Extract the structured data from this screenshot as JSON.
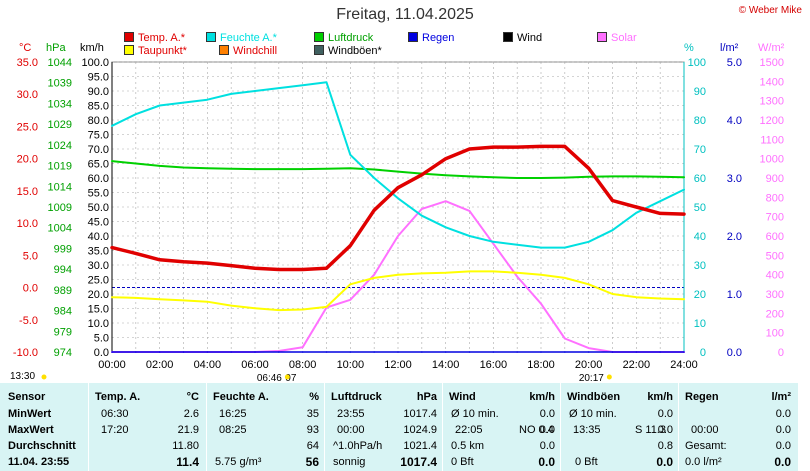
{
  "title": "Freitag, 11.04.2025",
  "credit": "© Weber Mike",
  "legend": [
    {
      "label": "Temp. A.*",
      "color": "#e00000"
    },
    {
      "label": "Feuchte A.*",
      "color": "#00e0e0"
    },
    {
      "label": "Luftdruck",
      "color": "#00d000"
    },
    {
      "label": "Regen",
      "color": "#0000e0"
    },
    {
      "label": "Wind",
      "color": "#000000"
    },
    {
      "label": "Solar",
      "color": "#ff70ff"
    },
    {
      "label": "Taupunkt*",
      "color": "#ffff00"
    },
    {
      "label": "Windchill",
      "color": "#ff8000"
    },
    {
      "label": "Windböen*",
      "color": "#406060"
    }
  ],
  "axis_units": {
    "temp": "°C",
    "pressure": "hPa",
    "wind": "km/h",
    "humidity": "%",
    "rain": "l/m²",
    "solar": "W/m²"
  },
  "chart_data": {
    "type": "line",
    "x": [
      0,
      1,
      2,
      3,
      4,
      5,
      6,
      7,
      8,
      9,
      10,
      11,
      12,
      13,
      14,
      15,
      16,
      17,
      18,
      19,
      20,
      21,
      22,
      23,
      24
    ],
    "x_tick_labels": [
      "00:00",
      "02:00",
      "04:00",
      "06:00",
      "08:00",
      "10:00",
      "12:00",
      "14:00",
      "16:00",
      "18:00",
      "20:00",
      "22:00",
      "24:00"
    ],
    "axes": {
      "temp_c": {
        "range": [
          -10,
          35
        ],
        "ticks": [
          "35.0",
          "30.0",
          "25.0",
          "20.0",
          "15.0",
          "10.0",
          "5.0",
          "0.0",
          "-5.0",
          "-10.0"
        ]
      },
      "pressure_hpa": {
        "range": [
          974,
          1046
        ],
        "ticks": [
          "1044",
          "1039",
          "1034",
          "1029",
          "1024",
          "1019",
          "1014",
          "1009",
          "1004",
          "999",
          "994",
          "989",
          "984",
          "979",
          "974"
        ]
      },
      "wind_kmh": {
        "range": [
          0,
          100
        ],
        "ticks": [
          "100.0",
          "95.0",
          "90.0",
          "85.0",
          "80.0",
          "75.0",
          "70.0",
          "65.0",
          "60.0",
          "55.0",
          "50.0",
          "45.0",
          "40.0",
          "35.0",
          "30.0",
          "25.0",
          "20.0",
          "15.0",
          "10.0",
          "5.0",
          "0.0"
        ]
      },
      "humidity_pct": {
        "range": [
          0,
          100
        ],
        "ticks": [
          "100",
          "90",
          "80",
          "70",
          "60",
          "50",
          "40",
          "30",
          "20",
          "10",
          "0"
        ]
      },
      "rain_lm2": {
        "range": [
          0,
          5
        ],
        "ticks": [
          "5.0",
          "4.0",
          "3.0",
          "2.0",
          "1.0",
          "0.0"
        ]
      },
      "solar_wm2": {
        "range": [
          0,
          1500
        ],
        "ticks": [
          "1500",
          "1400",
          "1300",
          "1200",
          "1100",
          "1000",
          "900",
          "800",
          "700",
          "600",
          "500",
          "400",
          "300",
          "200",
          "100",
          "0"
        ]
      }
    },
    "series": [
      {
        "name": "Temp. A.*",
        "axis": "temp_c",
        "color": "#e00000",
        "values": [
          6.2,
          5.3,
          4.3,
          4.0,
          3.8,
          3.4,
          3.0,
          2.8,
          2.8,
          3.0,
          6.5,
          12.0,
          15.5,
          17.5,
          20.0,
          21.5,
          21.8,
          21.8,
          21.9,
          21.9,
          18.5,
          13.5,
          12.5,
          11.5,
          11.4
        ]
      },
      {
        "name": "Feuchte A.*",
        "axis": "humidity_pct",
        "color": "#00e0e0",
        "values": [
          78,
          82,
          85,
          86,
          87,
          89,
          90,
          91,
          92,
          93,
          68,
          60,
          53,
          47,
          43,
          40,
          38,
          37,
          36,
          36,
          38,
          42,
          48,
          52,
          56
        ]
      },
      {
        "name": "Luftdruck",
        "axis": "pressure_hpa",
        "color": "#00d000",
        "values": [
          1021.4,
          1020.8,
          1020.2,
          1019.8,
          1019.6,
          1019.5,
          1019.4,
          1019.4,
          1019.4,
          1019.5,
          1019.6,
          1019.3,
          1018.8,
          1018.3,
          1017.9,
          1017.6,
          1017.4,
          1017.2,
          1017.2,
          1017.3,
          1017.5,
          1017.6,
          1017.6,
          1017.5,
          1017.4
        ]
      },
      {
        "name": "Taupunkt*",
        "axis": "temp_c",
        "color": "#ffff00",
        "values": [
          -1.5,
          -1.6,
          -1.8,
          -2.0,
          -2.2,
          -2.8,
          -3.2,
          -3.5,
          -3.4,
          -3.0,
          0.5,
          1.5,
          2.0,
          2.2,
          2.3,
          2.5,
          2.5,
          2.3,
          2.0,
          1.5,
          0.5,
          -1.0,
          -1.5,
          -1.7,
          -1.8
        ]
      },
      {
        "name": "Solar",
        "axis": "solar_wm2",
        "color": "#ff70ff",
        "values": [
          0,
          0,
          0,
          0,
          0,
          0,
          0,
          5,
          25,
          230,
          270,
          400,
          600,
          740,
          780,
          730,
          560,
          390,
          250,
          70,
          20,
          0,
          0,
          0,
          0
        ]
      },
      {
        "name": "Regen",
        "axis": "rain_lm2",
        "color": "#0000e0",
        "values": [
          0,
          0,
          0,
          0,
          0,
          0,
          0,
          0,
          0,
          0,
          0,
          0,
          0,
          0,
          0,
          0,
          0,
          0,
          0,
          0,
          0,
          0,
          0,
          0,
          0
        ]
      }
    ],
    "reference_line": {
      "axis": "temp_c",
      "value": 0.0,
      "style": "dashed",
      "color": "#0000c0"
    },
    "sun_events": [
      {
        "label": "06:46",
        "hour": 6.77
      },
      {
        "label": "07",
        "hour": 7.0
      },
      {
        "label": "20:17",
        "hour": 20.28
      }
    ],
    "grid": true
  },
  "markers": {
    "top_left": "13:30"
  },
  "stats": {
    "row_labels": [
      "Sensor",
      "MinWert",
      "MaxWert",
      "Durchschnitt",
      "11.04. 23:55"
    ],
    "temp": {
      "header": "Temp. A.",
      "unit": "°C",
      "rows": [
        [
          "06:30",
          "2.6"
        ],
        [
          "17:20",
          "21.9"
        ],
        [
          "",
          "11.80"
        ],
        [
          "",
          "11.4"
        ]
      ]
    },
    "humidity": {
      "header": "Feuchte A.",
      "unit": "%",
      "rows": [
        [
          "16:25",
          "35"
        ],
        [
          "08:25",
          "93"
        ],
        [
          "",
          "64"
        ],
        [
          "5.75 g/m³",
          "56"
        ]
      ]
    },
    "pressure": {
      "header": "Luftdruck",
      "unit": "hPa",
      "rows": [
        [
          "23:55",
          "1017.4"
        ],
        [
          "00:00",
          "1024.9"
        ],
        [
          "^1.0hPa/h",
          "1021.4"
        ],
        [
          "sonnig",
          "1017.4"
        ]
      ]
    },
    "wind": {
      "header": "Wind",
      "unit": "km/h",
      "rows": [
        [
          "Ø 10 min.",
          "",
          "0.0"
        ],
        [
          "22:05",
          "NO 0.4",
          "0.0"
        ],
        [
          "0.5 km",
          "",
          "0.0"
        ],
        [
          "0 Bft",
          "",
          "0.0"
        ]
      ]
    },
    "gust": {
      "header": "Windböen",
      "unit": "km/h",
      "rows": [
        [
          "Ø 10 min.",
          "",
          "0.0"
        ],
        [
          "13:35",
          "S 11.3",
          "0.0"
        ],
        [
          "",
          "",
          "0.8"
        ],
        [
          "0 Bft",
          "",
          "0.0"
        ]
      ]
    },
    "rain": {
      "header": "Regen",
      "unit": "l/m²",
      "rows": [
        [
          "",
          "0.0"
        ],
        [
          "00:00",
          "0.0"
        ],
        [
          "Gesamt:",
          "0.0"
        ],
        [
          "0.0 l/m²",
          "0.0"
        ]
      ]
    }
  }
}
